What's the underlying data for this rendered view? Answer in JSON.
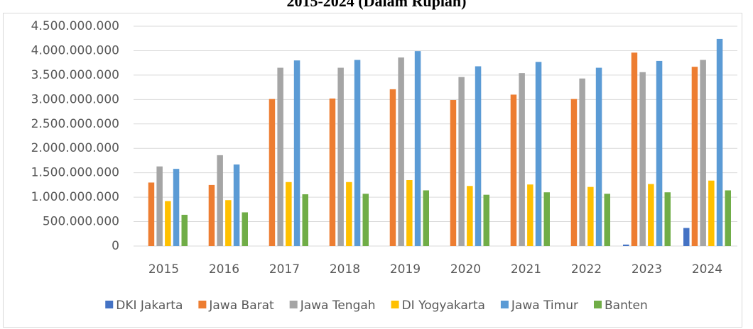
{
  "chart_data": {
    "type": "bar",
    "title": "2015-2024 (Dalam Rupiah)",
    "categories": [
      "2015",
      "2016",
      "2017",
      "2018",
      "2019",
      "2020",
      "2021",
      "2022",
      "2023",
      "2024"
    ],
    "series": [
      {
        "name": "DKI Jakarta",
        "color": "#4472c4",
        "values": [
          0,
          0,
          0,
          0,
          0,
          0,
          0,
          0,
          30000000,
          370000000
        ]
      },
      {
        "name": "Jawa Barat",
        "color": "#ed7d31",
        "values": [
          1300000000,
          1250000000,
          3010000000,
          3020000000,
          3210000000,
          2990000000,
          3100000000,
          3010000000,
          3960000000,
          3670000000
        ]
      },
      {
        "name": "Jawa Tengah",
        "color": "#a5a5a5",
        "values": [
          1630000000,
          1860000000,
          3650000000,
          3650000000,
          3860000000,
          3460000000,
          3540000000,
          3430000000,
          3560000000,
          3810000000
        ]
      },
      {
        "name": "DI Yogyakarta",
        "color": "#ffc000",
        "values": [
          920000000,
          940000000,
          1310000000,
          1310000000,
          1350000000,
          1230000000,
          1260000000,
          1210000000,
          1270000000,
          1340000000
        ]
      },
      {
        "name": "Jawa Timur",
        "color": "#5b9bd5",
        "values": [
          1580000000,
          1670000000,
          3800000000,
          3810000000,
          3990000000,
          3680000000,
          3770000000,
          3650000000,
          3790000000,
          4240000000
        ]
      },
      {
        "name": "Banten",
        "color": "#70ad47",
        "values": [
          640000000,
          690000000,
          1060000000,
          1070000000,
          1140000000,
          1050000000,
          1100000000,
          1070000000,
          1100000000,
          1140000000
        ]
      }
    ],
    "ylim": [
      0,
      4500000000
    ],
    "yticks": [
      0,
      {
        "value": 500000000,
        "label": "500.000.000"
      },
      {
        "value": 1000000000,
        "label": "1.000.000.000"
      },
      {
        "value": 1500000000,
        "label": "1.500.000.000"
      },
      {
        "value": 2000000000,
        "label": "2.000.000.000"
      },
      {
        "value": 2500000000,
        "label": "2.500.000.000"
      },
      {
        "value": 3000000000,
        "label": "3.000.000.000"
      },
      {
        "value": 3500000000,
        "label": "3.500.000.000"
      },
      {
        "value": 4000000000,
        "label": "4.000.000.000"
      },
      {
        "value": 4500000000,
        "label": "4.500.000.000"
      }
    ],
    "grid": true,
    "legend": "bottom"
  }
}
